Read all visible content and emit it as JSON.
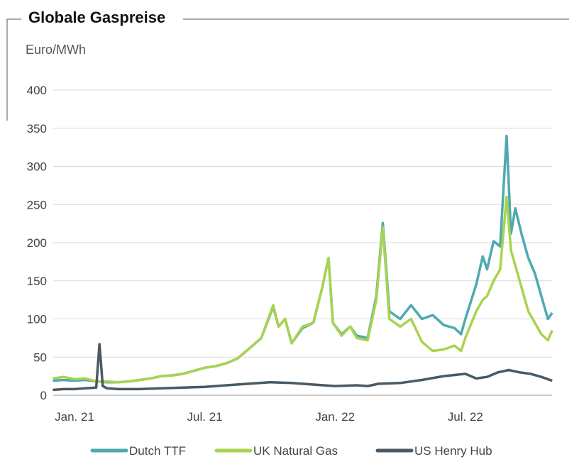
{
  "title": "Globale Gaspreise",
  "chart_data": {
    "type": "line",
    "title": "Globale Gaspreise",
    "ylabel": "Euro/MWh",
    "xlabel": "",
    "ylim": [
      0,
      400
    ],
    "yticks": [
      0,
      50,
      100,
      150,
      200,
      250,
      300,
      350,
      400
    ],
    "xticks": [
      {
        "label": "Jan. 21",
        "month": 0
      },
      {
        "label": "Jul. 21",
        "month": 6
      },
      {
        "label": "Jan. 22",
        "month": 12
      },
      {
        "label": "Jul. 22",
        "month": 18
      }
    ],
    "x_unit": "months since Jan. 2021",
    "grid": true,
    "legend_position": "bottom",
    "series": [
      {
        "name": "Dutch TTF",
        "color": "#4fa9b1",
        "points": [
          [
            -1,
            19
          ],
          [
            -0.5,
            20
          ],
          [
            0,
            19
          ],
          [
            0.5,
            20
          ],
          [
            1,
            18
          ],
          [
            1.5,
            17
          ],
          [
            2,
            17
          ],
          [
            2.5,
            18
          ],
          [
            3,
            20
          ],
          [
            3.5,
            22
          ],
          [
            4,
            25
          ],
          [
            4.5,
            26
          ],
          [
            5,
            28
          ],
          [
            5.5,
            32
          ],
          [
            6,
            36
          ],
          [
            6.5,
            38
          ],
          [
            7,
            42
          ],
          [
            7.5,
            48
          ],
          [
            8,
            60
          ],
          [
            8.6,
            75
          ],
          [
            9.15,
            116
          ],
          [
            9.4,
            90
          ],
          [
            9.7,
            100
          ],
          [
            10,
            68
          ],
          [
            10.5,
            88
          ],
          [
            11,
            95
          ],
          [
            11.4,
            140
          ],
          [
            11.7,
            180
          ],
          [
            11.9,
            95
          ],
          [
            12.3,
            80
          ],
          [
            12.7,
            90
          ],
          [
            13,
            78
          ],
          [
            13.5,
            75
          ],
          [
            13.9,
            130
          ],
          [
            14.2,
            226
          ],
          [
            14.5,
            110
          ],
          [
            15,
            100
          ],
          [
            15.5,
            118
          ],
          [
            16,
            100
          ],
          [
            16.5,
            105
          ],
          [
            17,
            92
          ],
          [
            17.5,
            88
          ],
          [
            17.8,
            80
          ],
          [
            18,
            100
          ],
          [
            18.5,
            145
          ],
          [
            18.8,
            182
          ],
          [
            19,
            165
          ],
          [
            19.3,
            202
          ],
          [
            19.6,
            195
          ],
          [
            19.9,
            340
          ],
          [
            20.1,
            212
          ],
          [
            20.3,
            245
          ],
          [
            20.6,
            210
          ],
          [
            20.9,
            180
          ],
          [
            21.2,
            160
          ],
          [
            21.5,
            130
          ],
          [
            21.8,
            100
          ],
          [
            22,
            108
          ]
        ]
      },
      {
        "name": "UK Natural Gas",
        "color": "#a9d34f",
        "points": [
          [
            -1,
            22
          ],
          [
            -0.5,
            24
          ],
          [
            0,
            21
          ],
          [
            0.5,
            22
          ],
          [
            1,
            18
          ],
          [
            1.5,
            18
          ],
          [
            2,
            17
          ],
          [
            2.5,
            18
          ],
          [
            3,
            20
          ],
          [
            3.5,
            22
          ],
          [
            4,
            25
          ],
          [
            4.5,
            26
          ],
          [
            5,
            28
          ],
          [
            5.5,
            32
          ],
          [
            6,
            36
          ],
          [
            6.5,
            38
          ],
          [
            7,
            42
          ],
          [
            7.5,
            48
          ],
          [
            8,
            60
          ],
          [
            8.6,
            75
          ],
          [
            9.15,
            118
          ],
          [
            9.4,
            90
          ],
          [
            9.7,
            100
          ],
          [
            10,
            68
          ],
          [
            10.5,
            90
          ],
          [
            11,
            95
          ],
          [
            11.4,
            140
          ],
          [
            11.7,
            180
          ],
          [
            11.9,
            95
          ],
          [
            12.3,
            78
          ],
          [
            12.7,
            90
          ],
          [
            13,
            75
          ],
          [
            13.5,
            72
          ],
          [
            13.9,
            125
          ],
          [
            14.2,
            220
          ],
          [
            14.5,
            100
          ],
          [
            15,
            90
          ],
          [
            15.5,
            100
          ],
          [
            16,
            70
          ],
          [
            16.5,
            58
          ],
          [
            17,
            60
          ],
          [
            17.5,
            65
          ],
          [
            17.8,
            58
          ],
          [
            18,
            75
          ],
          [
            18.5,
            110
          ],
          [
            18.8,
            125
          ],
          [
            19,
            130
          ],
          [
            19.3,
            150
          ],
          [
            19.6,
            165
          ],
          [
            19.9,
            260
          ],
          [
            20.1,
            190
          ],
          [
            20.3,
            170
          ],
          [
            20.6,
            140
          ],
          [
            20.9,
            110
          ],
          [
            21.2,
            95
          ],
          [
            21.5,
            80
          ],
          [
            21.8,
            72
          ],
          [
            22,
            85
          ]
        ]
      },
      {
        "name": "US Henry Hub",
        "color": "#4a5963",
        "points": [
          [
            -1,
            7
          ],
          [
            -0.5,
            8
          ],
          [
            0,
            8
          ],
          [
            0.5,
            9
          ],
          [
            1,
            10
          ],
          [
            1.15,
            67
          ],
          [
            1.3,
            12
          ],
          [
            1.5,
            9
          ],
          [
            2,
            8
          ],
          [
            3,
            8
          ],
          [
            4,
            9
          ],
          [
            5,
            10
          ],
          [
            6,
            11
          ],
          [
            7,
            13
          ],
          [
            8,
            15
          ],
          [
            9,
            17
          ],
          [
            10,
            16
          ],
          [
            11,
            14
          ],
          [
            12,
            12
          ],
          [
            13,
            13
          ],
          [
            13.5,
            12
          ],
          [
            14,
            15
          ],
          [
            15,
            16
          ],
          [
            16,
            20
          ],
          [
            17,
            25
          ],
          [
            18,
            28
          ],
          [
            18.5,
            22
          ],
          [
            19,
            24
          ],
          [
            19.5,
            30
          ],
          [
            20,
            33
          ],
          [
            20.5,
            30
          ],
          [
            21,
            28
          ],
          [
            21.5,
            24
          ],
          [
            22,
            19
          ]
        ]
      }
    ]
  }
}
